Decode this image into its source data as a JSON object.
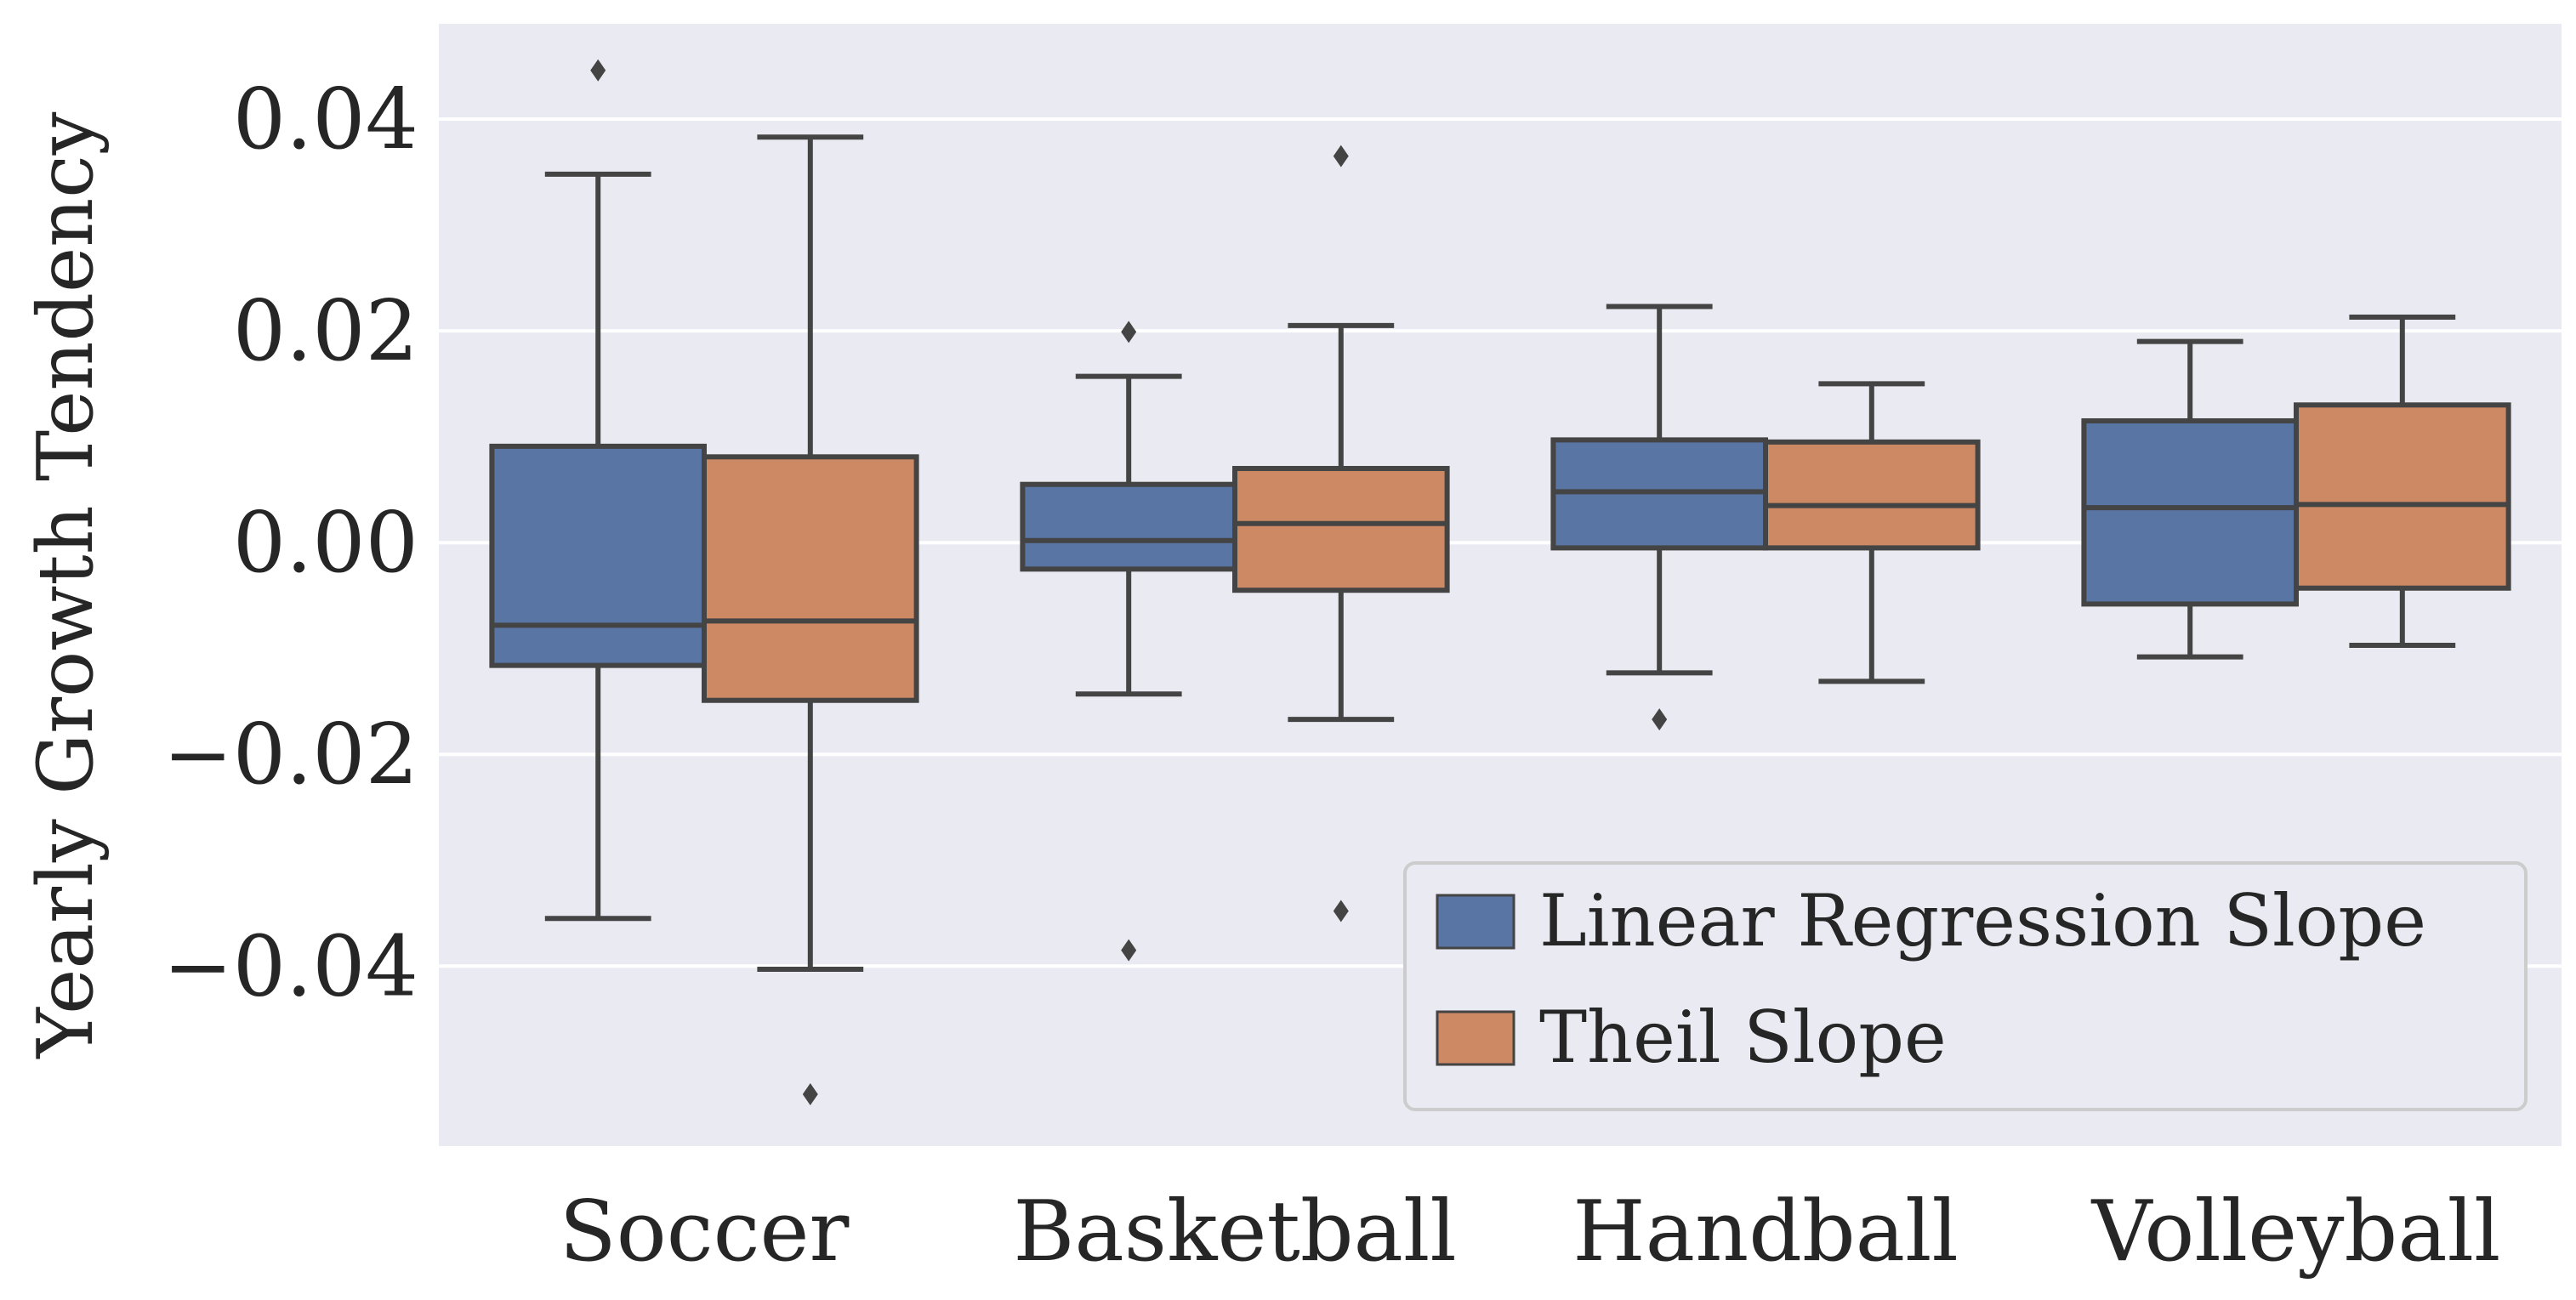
{
  "chart_data": {
    "type": "boxplot",
    "ylabel": "Yearly Growth Tendency",
    "ylim": [
      -0.057,
      0.049
    ],
    "yticks": [
      -0.04,
      -0.02,
      0.0,
      0.02,
      0.04
    ],
    "ytick_labels": [
      "−0.04",
      "−0.02",
      "0.00",
      "0.02",
      "0.04"
    ],
    "grid": true,
    "legend_position": "bottom-right",
    "categories": [
      "Soccer",
      "Basketball",
      "Handball",
      "Volleyball"
    ],
    "series": [
      {
        "name": "Linear Regression Slope",
        "color": "#5875a4",
        "boxes": [
          {
            "whisker_low": -0.0355,
            "q1": -0.0116,
            "median": -0.0078,
            "q3": 0.0091,
            "whisker_high": 0.0348,
            "fliers": [
              0.0446
            ]
          },
          {
            "whisker_low": -0.0143,
            "q1": -0.0025,
            "median": 0.0002,
            "q3": 0.0055,
            "whisker_high": 0.0157,
            "fliers": [
              0.0199,
              -0.0385
            ]
          },
          {
            "whisker_low": -0.0123,
            "q1": -0.0005,
            "median": 0.0048,
            "q3": 0.0097,
            "whisker_high": 0.0223,
            "fliers": [
              -0.0167
            ]
          },
          {
            "whisker_low": -0.0108,
            "q1": -0.0058,
            "median": 0.0033,
            "q3": 0.0115,
            "whisker_high": 0.019,
            "fliers": []
          }
        ]
      },
      {
        "name": "Theil Slope",
        "color": "#cc8963",
        "boxes": [
          {
            "whisker_low": -0.0403,
            "q1": -0.0149,
            "median": -0.0074,
            "q3": 0.0081,
            "whisker_high": 0.0383,
            "fliers": [
              -0.0521
            ]
          },
          {
            "whisker_low": -0.0167,
            "q1": -0.0045,
            "median": 0.0018,
            "q3": 0.007,
            "whisker_high": 0.0205,
            "fliers": [
              0.0365,
              -0.0348
            ]
          },
          {
            "whisker_low": -0.0131,
            "q1": -0.0005,
            "median": 0.0035,
            "q3": 0.0095,
            "whisker_high": 0.015,
            "fliers": []
          },
          {
            "whisker_low": -0.0097,
            "q1": -0.0043,
            "median": 0.0036,
            "q3": 0.013,
            "whisker_high": 0.0213,
            "fliers": []
          }
        ]
      }
    ]
  }
}
